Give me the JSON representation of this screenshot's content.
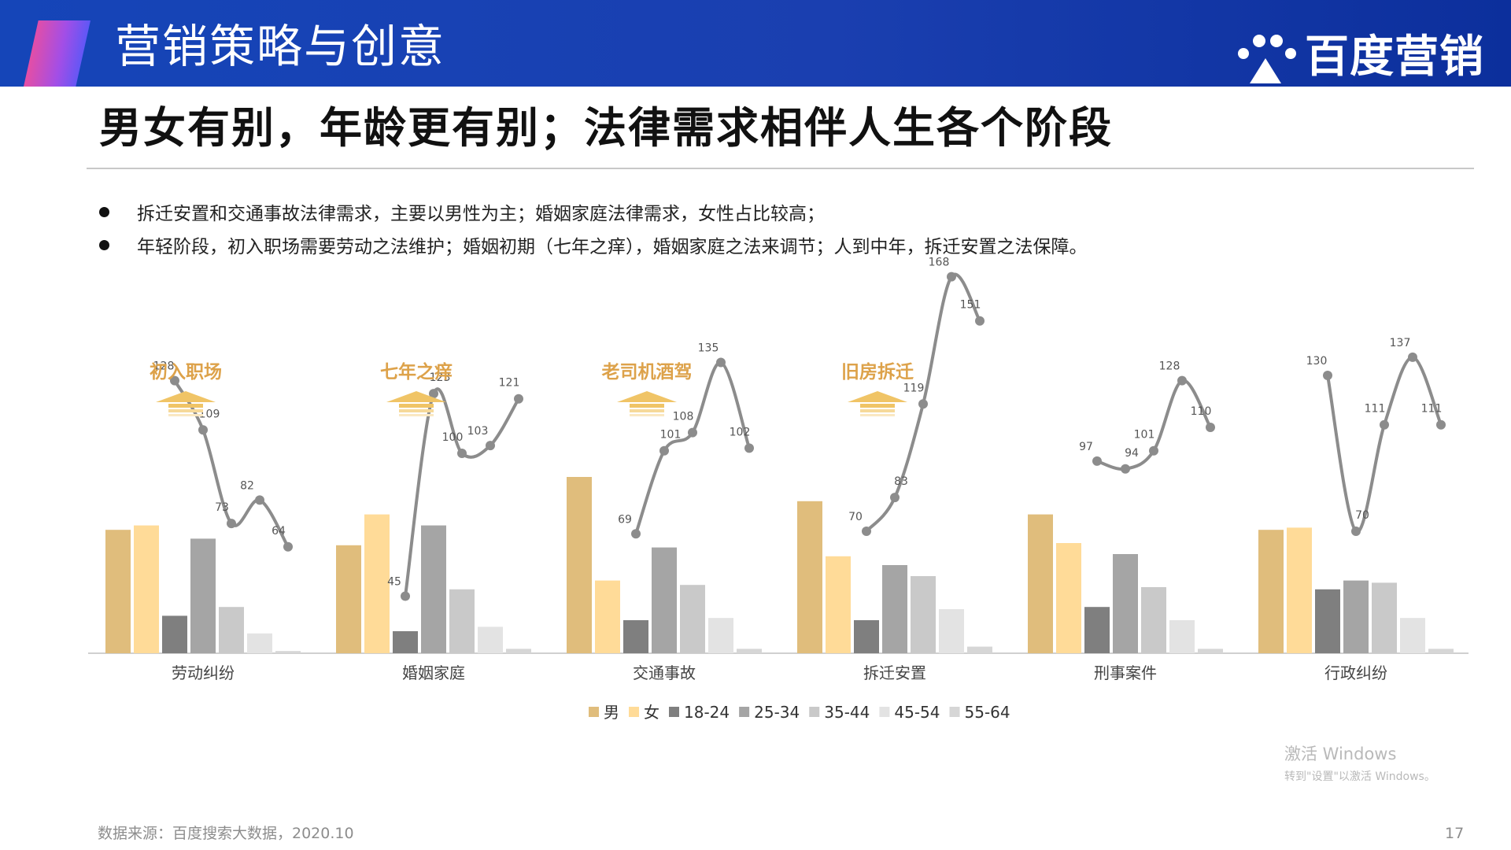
{
  "header": {
    "section_title": "营销策略与创意",
    "brand": "百度营销"
  },
  "headline": "男女有别，年龄更有别；法律需求相伴人生各个阶段",
  "bullets": [
    "拆迁安置和交通事故法律需求，主要以男性为主；婚姻家庭法律需求，女性占比较高；",
    "年轻阶段，初入职场需要劳动之法维护；婚姻初期（七年之痒），婚姻家庭之法来调节；人到中年，拆迁安置之法保障。"
  ],
  "chart_data": {
    "type": "bar",
    "categories": [
      "劳动纠纷",
      "婚姻家庭",
      "交通事故",
      "拆迁安置",
      "刑事案件",
      "行政纠纷"
    ],
    "callouts": [
      "初入职场",
      "七年之痒",
      "老司机酒驾",
      "旧房拆迁",
      "",
      ""
    ],
    "series": [
      {
        "name": "男",
        "color": "#e0bd7c",
        "values": [
          56,
          49,
          80,
          69,
          63,
          56
        ]
      },
      {
        "name": "女",
        "color": "#ffdb98",
        "values": [
          58,
          63,
          33,
          44,
          50,
          57
        ]
      },
      {
        "name": "18-24",
        "color": "#7f7f7f",
        "values": [
          17,
          10,
          15,
          15,
          21,
          29
        ]
      },
      {
        "name": "25-34",
        "color": "#a5a5a5",
        "values": [
          52,
          58,
          48,
          40,
          45,
          33
        ]
      },
      {
        "name": "35-44",
        "color": "#c9c9c9",
        "values": [
          21,
          29,
          31,
          35,
          30,
          32
        ]
      },
      {
        "name": "45-54",
        "color": "#e3e3e3",
        "values": [
          9,
          12,
          16,
          20,
          15,
          16
        ]
      },
      {
        "name": "55-64",
        "color": "#d6d6d6",
        "values": [
          1,
          2,
          2,
          3,
          2,
          2
        ]
      }
    ],
    "index_lines": [
      {
        "labels": [
          "128",
          "109",
          "73",
          "82",
          "64"
        ],
        "values": [
          128,
          109,
          73,
          82,
          64
        ]
      },
      {
        "labels": [
          "45",
          "123",
          "100",
          "103",
          "121"
        ],
        "values": [
          45,
          123,
          100,
          103,
          121
        ]
      },
      {
        "labels": [
          "69",
          "101",
          "108",
          "135",
          "102"
        ],
        "values": [
          69,
          101,
          108,
          135,
          102
        ]
      },
      {
        "labels": [
          "70",
          "83",
          "119",
          "168",
          "151"
        ],
        "values": [
          70,
          83,
          119,
          168,
          151
        ]
      },
      {
        "labels": [
          "97",
          "94",
          "101",
          "128",
          "110"
        ],
        "values": [
          97,
          94,
          101,
          128,
          110
        ]
      },
      {
        "labels": [
          "130",
          "70",
          "111",
          "137",
          "111"
        ],
        "values": [
          130,
          70,
          111,
          137,
          111
        ]
      }
    ],
    "legend_position": "bottom-center"
  },
  "watermark": {
    "line1": "激活 Windows",
    "line2": "转到\"设置\"以激活 Windows。"
  },
  "footer": {
    "source": "数据来源：百度搜索大数据，2020.10",
    "page_number": "17"
  }
}
